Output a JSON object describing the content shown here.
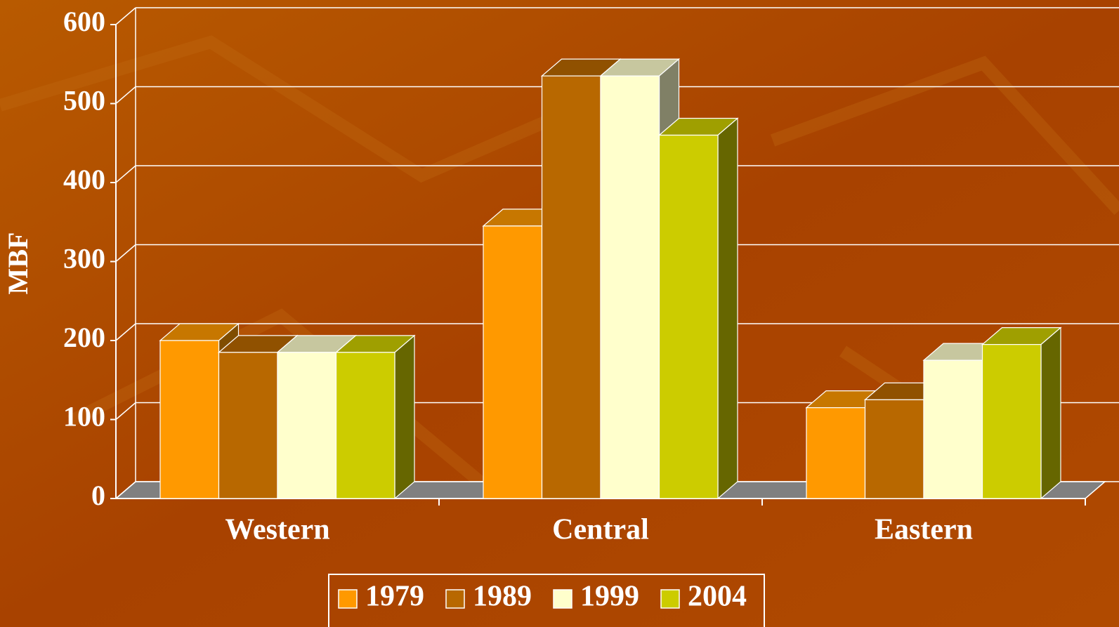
{
  "chart_data": {
    "type": "bar3d",
    "y_label": "MBF",
    "categories": [
      "Western",
      "Central",
      "Eastern"
    ],
    "series": [
      {
        "name": "1979",
        "color": "#ff9900",
        "values": [
          200,
          345,
          115
        ]
      },
      {
        "name": "1989",
        "color": "#b86800",
        "values": [
          185,
          535,
          125
        ]
      },
      {
        "name": "1999",
        "color": "#ffffcc",
        "values": [
          185,
          535,
          175
        ]
      },
      {
        "name": "2004",
        "color": "#cccc00",
        "values": [
          185,
          460,
          195
        ]
      }
    ],
    "ylim": [
      0,
      600
    ],
    "yticks": [
      0,
      100,
      200,
      300,
      400,
      500,
      600
    ],
    "grid": true,
    "legend": "bottom"
  }
}
